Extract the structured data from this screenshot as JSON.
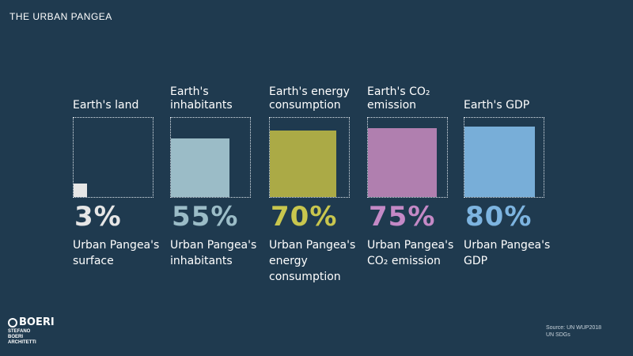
{
  "title": "THE URBAN PANGEA",
  "chart_data": {
    "type": "bar",
    "categories": [
      "Earth's land",
      "Earth's inhabitants",
      "Earth's energy consumption",
      "Earth's CO₂ emission",
      "Earth's GDP"
    ],
    "values": [
      3,
      55,
      70,
      75,
      80
    ],
    "value_labels": [
      "3%",
      "55%",
      "70%",
      "75%",
      "80%"
    ],
    "bottom_labels": [
      "Urban Pangea's surface",
      "Urban Pangea's inhabitants",
      "Urban Pangea's energy consumption",
      "Urban Pangea's CO₂ emission",
      "Urban Pangea's GDP"
    ],
    "colors": [
      "#e6e6e6",
      "#9bbcc7",
      "#abaa46",
      "#b07faf",
      "#78aed8"
    ],
    "value_label_colors": [
      "#e6e6e6",
      "#9bbcc7",
      "#c8c64e",
      "#c489c6",
      "#7db4e0"
    ],
    "ylim": [
      0,
      100
    ]
  },
  "logo": {
    "mark": "BOERI",
    "sub_line1": "STEFANO",
    "sub_line2": "BOERI",
    "sub_line3": "ARCHITETTI"
  },
  "source": {
    "line1": "Source: UN WUP2018",
    "line2": "UN SDGs"
  }
}
